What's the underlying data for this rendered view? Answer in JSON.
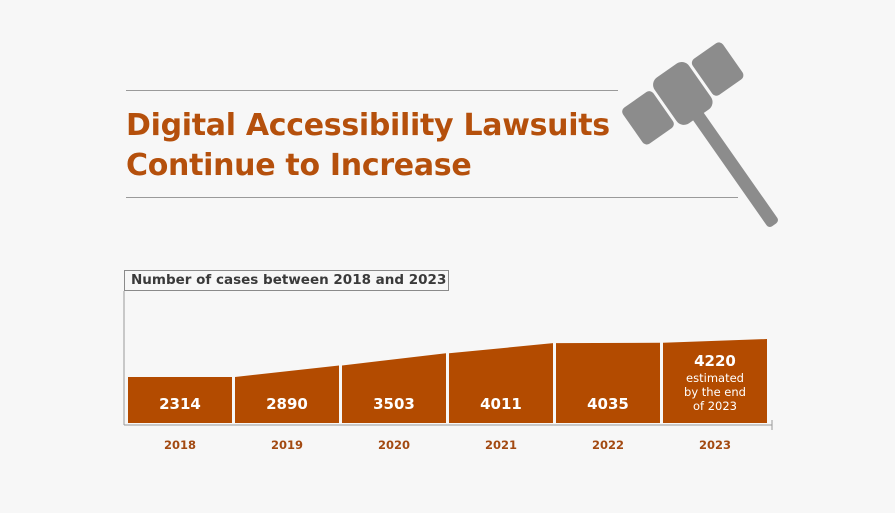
{
  "title": {
    "line1": "Digital Accessibility Lawsuits",
    "line2": "Continue to Increase"
  },
  "colors": {
    "bar": "#b34b00",
    "title": "#b5500c",
    "year_label": "#a34a12",
    "gavel": "#8c8c8c",
    "background": "#f7f7f7"
  },
  "icon": "gavel-icon",
  "chart_data": {
    "type": "area",
    "title": "Number of cases between 2018 and 2023",
    "categories": [
      "2018",
      "2019",
      "2020",
      "2021",
      "2022",
      "2023"
    ],
    "values": [
      2314,
      2890,
      3503,
      4011,
      4035,
      4220
    ],
    "data_labels": [
      "2314",
      "2890",
      "3503",
      "4011",
      "4035",
      "4220"
    ],
    "annotation": "estimated by the end of 2023",
    "annotation_lines": [
      "estimated",
      "by the end",
      "of 2023"
    ],
    "grid": false
  }
}
